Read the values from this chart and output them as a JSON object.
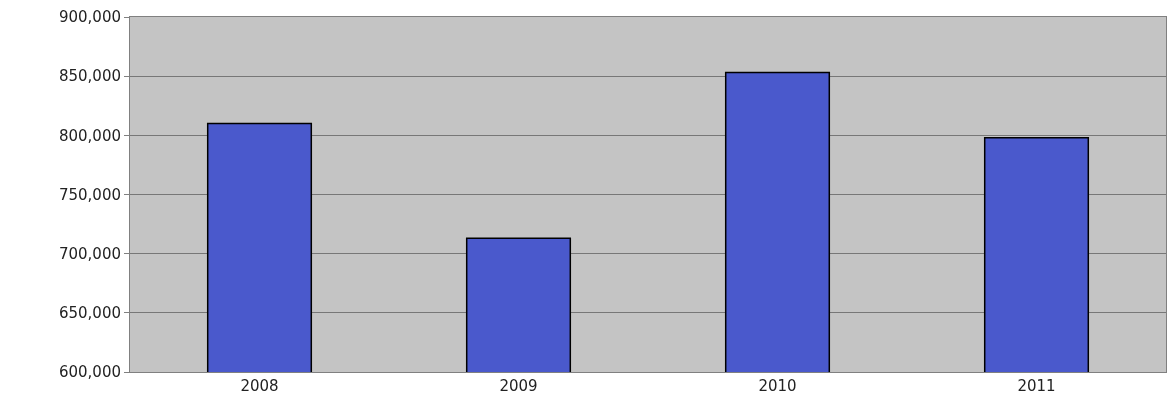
{
  "chart_data": {
    "type": "bar",
    "categories": [
      "2008",
      "2009",
      "2010",
      "2011"
    ],
    "values": [
      810000,
      713000,
      853000,
      798000
    ],
    "color": "#4a59cc",
    "ylim": [
      600000,
      900000
    ],
    "yticks": [
      {
        "value": 600000,
        "label": "600,000"
      },
      {
        "value": 650000,
        "label": "650,000"
      },
      {
        "value": 700000,
        "label": "700,000"
      },
      {
        "value": 750000,
        "label": "750,000"
      },
      {
        "value": 800000,
        "label": "800,000"
      },
      {
        "value": 850000,
        "label": "850,000"
      },
      {
        "value": 900000,
        "label": "900,000"
      }
    ],
    "grid": "y"
  }
}
